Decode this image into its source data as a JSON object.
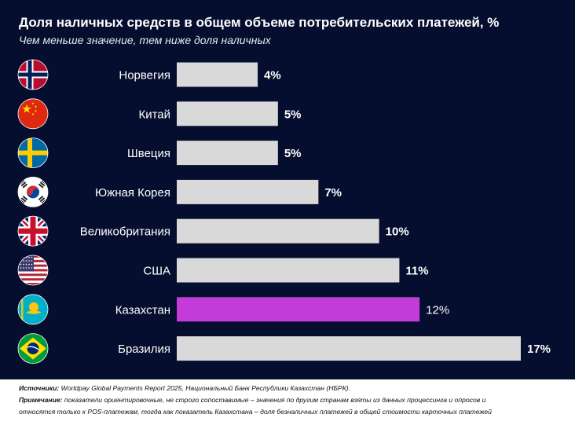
{
  "title": "Доля наличных средств в общем объеме потребительских платежей, %",
  "subtitle": "Чем меньше значение, тем ниже доля наличных",
  "chart_data": {
    "type": "bar",
    "orientation": "horizontal",
    "categories": [
      "Норвегия",
      "Китай",
      "Швеция",
      "Южная Корея",
      "Великобритания",
      "США",
      "Казахстан",
      "Бразилия"
    ],
    "values": [
      4,
      5,
      5,
      7,
      10,
      11,
      12,
      17
    ],
    "value_labels": [
      "4%",
      "5%",
      "5%",
      "7%",
      "10%",
      "11%",
      "12%",
      "17%"
    ],
    "flags": [
      "norway-flag-icon",
      "china-flag-icon",
      "sweden-flag-icon",
      "south-korea-flag-icon",
      "uk-flag-icon",
      "usa-flag-icon",
      "kazakhstan-flag-icon",
      "brazil-flag-icon"
    ],
    "highlight": "Казахстан",
    "colors": {
      "bar": "#d9d9d9",
      "highlight": "#c33cd9",
      "background": "#050e2e"
    },
    "xlim": [
      0,
      17
    ],
    "grid": false
  },
  "footer": {
    "source_label": "Источники:",
    "source": "Worldpay Global Payments Report 2025, Национальный Банк Республики Казахстан (НБРК).",
    "note_label": "Примечание:",
    "note_line1": "показатели ориентировочные, не строго сопоставимые – значения по другим странам взяты из данных процессинга и опросов и",
    "note_line2": "относятся только к POS-платежам, тогда как показатель Казахстана – доля безналичных платежей в общей стоимости карточных платежей"
  }
}
